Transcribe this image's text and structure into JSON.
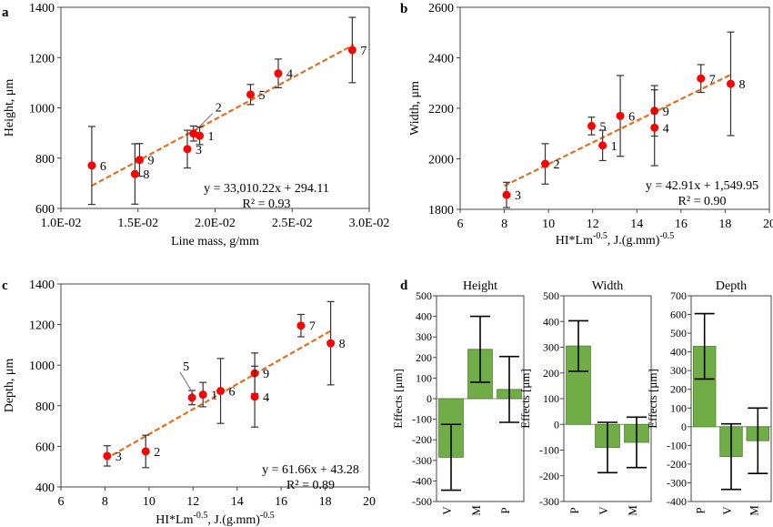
{
  "chart_data": [
    {
      "panel": "a",
      "type": "scatter",
      "xlabel": "Line mass, g/mm",
      "ylabel": "Height, μm",
      "xlim": [
        0.01,
        0.03
      ],
      "ylim": [
        600,
        1400
      ],
      "xticks": [
        0.01,
        0.015,
        0.02,
        0.025,
        0.03
      ],
      "xtick_labels": [
        "1.0E-02",
        "1.5E-02",
        "2.0E-02",
        "2.5E-02",
        "3.0E-02"
      ],
      "yticks": [
        600,
        800,
        1000,
        1200,
        1400
      ],
      "ytick_labels": [
        "600",
        "800",
        "1000",
        "1200",
        "1400"
      ],
      "points": [
        {
          "label": "6",
          "x": 0.012,
          "y": 771,
          "err": 155
        },
        {
          "label": "8",
          "x": 0.0148,
          "y": 737,
          "err": 120
        },
        {
          "label": "9",
          "x": 0.0151,
          "y": 793,
          "err": 65
        },
        {
          "label": "3",
          "x": 0.0182,
          "y": 836,
          "err": 75
        },
        {
          "label": "2",
          "x": 0.0186,
          "y": 898,
          "err": 30
        },
        {
          "label": "1",
          "x": 0.019,
          "y": 889,
          "err": 35
        },
        {
          "label": "5",
          "x": 0.0223,
          "y": 1053,
          "err": 40
        },
        {
          "label": "4",
          "x": 0.0241,
          "y": 1137,
          "err": 57
        },
        {
          "label": "7",
          "x": 0.0289,
          "y": 1230,
          "err": 130
        }
      ],
      "trend": {
        "slope": 33010.22,
        "intercept": 294.11,
        "x_range": [
          0.012,
          0.029
        ]
      },
      "equation": "y = 33,010.22x + 294.11",
      "r2": "R² = 0.93"
    },
    {
      "panel": "b",
      "type": "scatter",
      "xlabel_main": "HI*Lm",
      "xlabel_sup": "-0.5",
      "xlabel_mid": ", J.(g.mm)",
      "xlabel_sup2": "-0.5",
      "ylabel": "Width, μm",
      "xlim": [
        6,
        20
      ],
      "ylim": [
        1800,
        2600
      ],
      "xticks": [
        6,
        8,
        10,
        12,
        14,
        16,
        18,
        20
      ],
      "xtick_labels": [
        "6",
        "8",
        "10",
        "12",
        "14",
        "16",
        "18",
        "20"
      ],
      "yticks": [
        1800,
        2000,
        2200,
        2400,
        2600
      ],
      "ytick_labels": [
        "1800",
        "2000",
        "2200",
        "2400",
        "2600"
      ],
      "points": [
        {
          "label": "3",
          "x": 8.1,
          "y": 1857,
          "err": 50
        },
        {
          "label": "2",
          "x": 9.85,
          "y": 1980,
          "err": 80
        },
        {
          "label": "5",
          "x": 11.95,
          "y": 2130,
          "err": 35
        },
        {
          "label": "1",
          "x": 12.45,
          "y": 2053,
          "err": 60
        },
        {
          "label": "6",
          "x": 13.25,
          "y": 2170,
          "err": 160
        },
        {
          "label": "9",
          "x": 14.8,
          "y": 2190,
          "err": 100
        },
        {
          "label": "4",
          "x": 14.8,
          "y": 2123,
          "err": 150
        },
        {
          "label": "7",
          "x": 16.9,
          "y": 2318,
          "err": 55
        },
        {
          "label": "8",
          "x": 18.25,
          "y": 2297,
          "err": 205
        }
      ],
      "trend": {
        "slope": 42.91,
        "intercept": 1549.95,
        "x_range": [
          8.0,
          18.3
        ]
      },
      "equation": "y = 42.91x + 1,549.95",
      "r2": "R² = 0.90"
    },
    {
      "panel": "c",
      "type": "scatter",
      "xlabel_main": "HI*Lm",
      "xlabel_sup": "-0.5",
      "xlabel_mid": ", J.(g.mm)",
      "xlabel_sup2": "-0.5",
      "ylabel": "Depth, μm",
      "xlim": [
        6,
        20
      ],
      "ylim": [
        400,
        1400
      ],
      "xticks": [
        6,
        8,
        10,
        12,
        14,
        16,
        18,
        20
      ],
      "xtick_labels": [
        "6",
        "8",
        "10",
        "12",
        "14",
        "16",
        "18",
        "20"
      ],
      "yticks": [
        400,
        600,
        800,
        1000,
        1200,
        1400
      ],
      "ytick_labels": [
        "400",
        "600",
        "800",
        "1000",
        "1200",
        "1400"
      ],
      "points": [
        {
          "label": "3",
          "x": 8.1,
          "y": 553,
          "err": 50
        },
        {
          "label": "2",
          "x": 9.85,
          "y": 575,
          "err": 80
        },
        {
          "label": "5",
          "x": 11.95,
          "y": 840,
          "err": 35
        },
        {
          "label": "1",
          "x": 12.45,
          "y": 855,
          "err": 60
        },
        {
          "label": "6",
          "x": 13.25,
          "y": 873,
          "err": 160
        },
        {
          "label": "9",
          "x": 14.8,
          "y": 960,
          "err": 100
        },
        {
          "label": "4",
          "x": 14.8,
          "y": 845,
          "err": 150
        },
        {
          "label": "7",
          "x": 16.9,
          "y": 1195,
          "err": 55
        },
        {
          "label": "8",
          "x": 18.25,
          "y": 1108,
          "err": 205
        }
      ],
      "trend": {
        "slope": 61.66,
        "intercept": 43.28,
        "x_range": [
          8.0,
          18.3
        ]
      },
      "equation": "y = 61.66x + 43.28",
      "r2": "R² = 0.89"
    },
    {
      "panel": "d",
      "type": "bar",
      "title": "Height",
      "ylabel": "Effects [μm]",
      "ylim": [
        -500,
        500
      ],
      "yticks": [
        -500,
        -400,
        -300,
        -200,
        -100,
        0,
        100,
        200,
        300,
        400,
        500
      ],
      "categories": [
        "V",
        "M",
        "P"
      ],
      "values": [
        -285,
        240,
        45
      ],
      "errors": [
        160,
        160,
        160
      ]
    },
    {
      "panel": "d",
      "type": "bar",
      "title": "Width",
      "ylabel": "Effects [μm]",
      "ylim": [
        -300,
        500
      ],
      "yticks": [
        -300,
        -200,
        -100,
        0,
        100,
        200,
        300,
        400,
        500
      ],
      "categories": [
        "P",
        "V",
        "M"
      ],
      "values": [
        305,
        -90,
        -70
      ],
      "errors": [
        98,
        98,
        98
      ]
    },
    {
      "panel": "d",
      "type": "bar",
      "title": "Depth",
      "ylabel": "Effects [μm]",
      "ylim": [
        -400,
        700
      ],
      "yticks": [
        -400,
        -300,
        -200,
        -100,
        0,
        100,
        200,
        300,
        400,
        500,
        600,
        700
      ],
      "categories": [
        "P",
        "V",
        "M"
      ],
      "values": [
        430,
        -160,
        -75
      ],
      "errors": [
        175,
        175,
        175
      ]
    }
  ],
  "panel_letters": [
    "a",
    "b",
    "c",
    "d"
  ],
  "colors": {
    "marker": "#ff0000",
    "trend": "#e07020",
    "bar_fill": "#70ad47",
    "bar_edge": "#507e32",
    "axis": "#000000"
  }
}
